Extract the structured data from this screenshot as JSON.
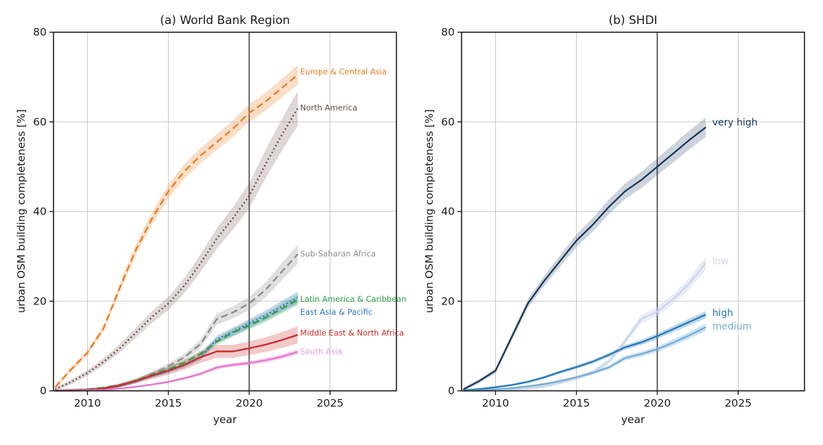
{
  "figure": {
    "background": "#ffffff",
    "spine_color": "#1a1a1a",
    "grid_color": "#cbcbcb"
  },
  "chart_data": [
    {
      "type": "line",
      "title": "(a) World Bank Region",
      "xlabel": "year",
      "ylabel": "urban OSM building completeness [%]",
      "xlim": [
        2007.9,
        2029.1
      ],
      "ylim": [
        0,
        80
      ],
      "xticks": [
        2010,
        2015,
        2020,
        2025
      ],
      "yticks": [
        0,
        20,
        40,
        60,
        80
      ],
      "grid": true,
      "vline": {
        "x": 2020,
        "color": "#3f3f3f"
      },
      "annotation_x": 2023.15,
      "x": [
        2008,
        2009,
        2010,
        2011,
        2012,
        2013,
        2014,
        2015,
        2016,
        2017,
        2018,
        2019,
        2020,
        2021,
        2022,
        2023
      ],
      "series": [
        {
          "name": "Europe & Central Asia",
          "color": "#ee7d1e",
          "style": "dashed",
          "values": [
            0.8,
            4.8,
            8.5,
            14,
            23,
            31.5,
            38.5,
            44.5,
            49,
            52.5,
            55.5,
            58.5,
            62,
            64.5,
            67.5,
            70.5
          ],
          "label_y": 71.2,
          "band_min": 0.4,
          "band_frac": 0.025,
          "band_opacity": 0.25
        },
        {
          "name": "North America",
          "color": "#6a4a3f",
          "style": "dotted",
          "values": [
            0.3,
            2,
            4,
            6.5,
            9.5,
            13,
            16.5,
            19.5,
            23.5,
            28.5,
            34,
            38.5,
            43.5,
            50.5,
            57,
            63
          ],
          "label_y": 63.2,
          "band_min": 0.4,
          "band_frac": 0.055,
          "band_opacity": 0.22
        },
        {
          "name": "Sub-Saharan Africa",
          "color": "#8c8c8c",
          "style": "dashed",
          "values": [
            0,
            0.1,
            0.2,
            0.5,
            1.2,
            2.2,
            3.8,
            5.5,
            7.5,
            10.5,
            16,
            17.5,
            19.5,
            22.5,
            26.5,
            30.5
          ],
          "label_y": 30.6,
          "band_min": 0.3,
          "band_frac": 0.06,
          "band_opacity": 0.28
        },
        {
          "name": "Latin America & Caribbean",
          "color": "#2e9e44",
          "style": "dashed",
          "values": [
            0,
            0.1,
            0.3,
            0.7,
            1.3,
            2.3,
            3.6,
            4.8,
            6.3,
            8.3,
            11,
            13,
            14.6,
            16.3,
            18.3,
            20.3
          ],
          "label_y": 20.5,
          "band_min": 0.25,
          "band_frac": 0.045,
          "band_opacity": 0.25
        },
        {
          "name": "East Asia & Pacific",
          "color": "#2e75b6",
          "style": "dotted",
          "values": [
            0,
            0.1,
            0.2,
            0.5,
            1.1,
            2.1,
            3.3,
            4.4,
            5.7,
            7.5,
            11.5,
            13.2,
            15,
            16.8,
            18.8,
            20.8
          ],
          "label_y": 17.6,
          "band_min": 0.25,
          "band_frac": 0.05,
          "band_opacity": 0.3
        },
        {
          "name": "Middle East & North Africa",
          "color": "#cc2b2b",
          "style": "solid",
          "values": [
            0,
            0.1,
            0.2,
            0.5,
            1.2,
            2.2,
            3.4,
            4.5,
            5.8,
            7.5,
            8.8,
            8.8,
            9.5,
            10.3,
            11.3,
            12.5
          ],
          "label_y": 12.9,
          "band_min": 0.3,
          "band_frac": 0.13,
          "band_opacity": 0.25
        },
        {
          "name": "South Asia",
          "color": "#e678cf",
          "style": "solid",
          "values": [
            0,
            0,
            0.1,
            0.2,
            0.5,
            0.9,
            1.4,
            2,
            2.8,
            3.8,
            5.2,
            5.8,
            6.2,
            6.8,
            7.6,
            8.7
          ],
          "label_y": 8.8,
          "label_color": "#ec9ad9",
          "band_min": 0.15,
          "band_frac": 0.05,
          "band_opacity": 0.35
        }
      ]
    },
    {
      "type": "line",
      "title": "(b) SHDI",
      "xlabel": "year",
      "ylabel": "urban OSM building completeness [%]",
      "xlim": [
        2007.9,
        2029.1
      ],
      "ylim": [
        0,
        80
      ],
      "xticks": [
        2010,
        2015,
        2020,
        2025
      ],
      "yticks": [
        0,
        20,
        40,
        60,
        80
      ],
      "grid": true,
      "vline": {
        "x": 2020,
        "color": "#3f3f3f"
      },
      "annotation_x": 2023.4,
      "x": [
        2008,
        2009,
        2010,
        2011,
        2012,
        2013,
        2014,
        2015,
        2016,
        2017,
        2018,
        2019,
        2020,
        2021,
        2022,
        2023
      ],
      "series": [
        {
          "name": "very high",
          "color": "#16365c",
          "style": "solid",
          "values": [
            0.3,
            2.2,
            4.5,
            12,
            19.5,
            24.5,
            29,
            33.5,
            37,
            41,
            44.5,
            47,
            50,
            53,
            56,
            58.8
          ],
          "label_y": 59.8,
          "band_min": 0.4,
          "band_frac": 0.03,
          "band_opacity": 0.22
        },
        {
          "name": "low",
          "color": "#c9d6ea",
          "style": "solid",
          "values": [
            0,
            0,
            0.1,
            0.2,
            0.5,
            1,
            1.8,
            2.8,
            4.2,
            6.5,
            11,
            16,
            17.7,
            20.5,
            24,
            28.5
          ],
          "label_y": 28.8,
          "band_min": 0.3,
          "band_frac": 0.04,
          "band_opacity": 0.45
        },
        {
          "name": "high",
          "color": "#2579b8",
          "style": "solid",
          "values": [
            0.1,
            0.4,
            0.8,
            1.3,
            2,
            3,
            4.2,
            5.3,
            6.5,
            8,
            9.7,
            10.8,
            12.2,
            13.8,
            15.4,
            17
          ],
          "label_y": 17.3,
          "band_min": 0.2,
          "band_frac": 0.035,
          "band_opacity": 0.3
        },
        {
          "name": "medium",
          "color": "#74add6",
          "style": "solid",
          "values": [
            0,
            0.1,
            0.3,
            0.6,
            1,
            1.5,
            2.2,
            3,
            4,
            5.2,
            7.3,
            8.2,
            9.3,
            10.8,
            12.4,
            14.2
          ],
          "label_y": 14.3,
          "band_min": 0.2,
          "band_frac": 0.045,
          "band_opacity": 0.35
        }
      ]
    }
  ]
}
